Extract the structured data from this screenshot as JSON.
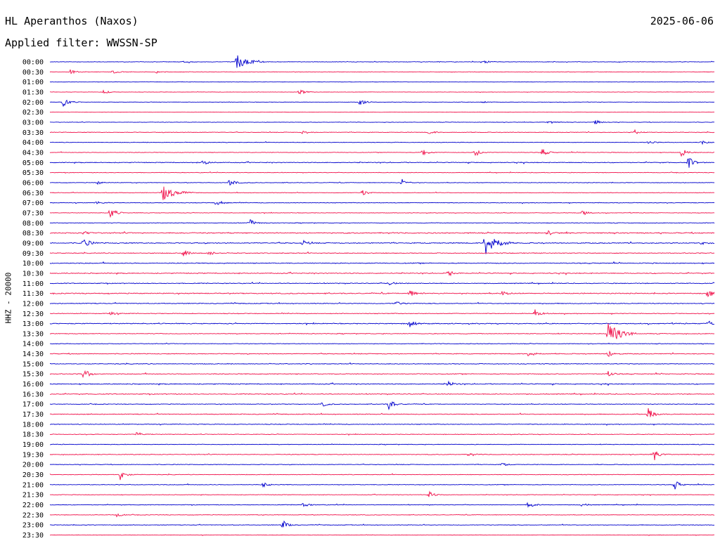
{
  "header": {
    "station": "HL Aperanthos (Naxos)",
    "date": "2025-06-06",
    "filter": "Applied filter: WWSSN-SP"
  },
  "colors": {
    "even_row": "#0000cc",
    "odd_row": "#f0104a",
    "text": "#000000"
  },
  "chart_data": {
    "type": "line",
    "title": "HL Aperanthos (Naxos)",
    "subtitle": "Applied filter: WWSSN-SP",
    "ylabel": "HHZ - 20000",
    "xlabel": "",
    "row_minutes": 30,
    "row_labels": [
      "00:00",
      "00:30",
      "01:00",
      "01:30",
      "02:00",
      "02:30",
      "03:00",
      "03:30",
      "04:00",
      "04:30",
      "05:00",
      "05:30",
      "06:00",
      "06:30",
      "07:00",
      "07:30",
      "08:00",
      "08:30",
      "09:00",
      "09:30",
      "10:00",
      "10:30",
      "11:00",
      "11:30",
      "12:00",
      "12:30",
      "13:00",
      "13:30",
      "14:00",
      "14:30",
      "15:00",
      "15:30",
      "16:00",
      "16:30",
      "17:00",
      "17:30",
      "18:00",
      "18:30",
      "19:00",
      "19:30",
      "20:00",
      "20:30",
      "21:00",
      "21:30",
      "22:00",
      "22:30",
      "23:00",
      "23:30"
    ],
    "noise_level": [
      0.3,
      0.25,
      0.15,
      0.2,
      0.2,
      0.15,
      0.25,
      0.35,
      0.3,
      0.3,
      0.45,
      0.3,
      0.3,
      0.3,
      0.35,
      0.3,
      0.35,
      0.6,
      0.55,
      0.45,
      0.5,
      0.5,
      0.45,
      0.55,
      0.45,
      0.4,
      0.5,
      0.4,
      0.35,
      0.45,
      0.4,
      0.45,
      0.5,
      0.45,
      0.35,
      0.45,
      0.4,
      0.35,
      0.35,
      0.4,
      0.35,
      0.35,
      0.35,
      0.3,
      0.35,
      0.3,
      0.35,
      0.25
    ],
    "events": [
      {
        "row": 0,
        "t": 0.28,
        "amp": 11
      },
      {
        "row": 0,
        "t": 0.65,
        "amp": 4
      },
      {
        "row": 0,
        "t": 0.2,
        "amp": 2
      },
      {
        "row": 1,
        "t": 0.03,
        "amp": 4
      },
      {
        "row": 1,
        "t": 0.095,
        "amp": 3
      },
      {
        "row": 1,
        "t": 0.16,
        "amp": 2
      },
      {
        "row": 3,
        "t": 0.08,
        "amp": 3
      },
      {
        "row": 3,
        "t": 0.375,
        "amp": 5
      },
      {
        "row": 4,
        "t": 0.02,
        "amp": 9
      },
      {
        "row": 4,
        "t": 0.465,
        "amp": 7
      },
      {
        "row": 4,
        "t": 0.65,
        "amp": 2
      },
      {
        "row": 6,
        "t": 0.75,
        "amp": 3
      },
      {
        "row": 6,
        "t": 0.82,
        "amp": 4
      },
      {
        "row": 7,
        "t": 0.38,
        "amp": 4
      },
      {
        "row": 7,
        "t": 0.57,
        "amp": 3
      },
      {
        "row": 7,
        "t": 0.88,
        "amp": 3
      },
      {
        "row": 8,
        "t": 0.9,
        "amp": 3
      },
      {
        "row": 8,
        "t": 0.98,
        "amp": 3
      },
      {
        "row": 9,
        "t": 0.56,
        "amp": 7
      },
      {
        "row": 9,
        "t": 0.64,
        "amp": 6
      },
      {
        "row": 9,
        "t": 0.74,
        "amp": 7
      },
      {
        "row": 9,
        "t": 0.95,
        "amp": 7
      },
      {
        "row": 10,
        "t": 0.23,
        "amp": 4
      },
      {
        "row": 10,
        "t": 0.96,
        "amp": 10
      },
      {
        "row": 12,
        "t": 0.07,
        "amp": 3
      },
      {
        "row": 12,
        "t": 0.27,
        "amp": 7
      },
      {
        "row": 12,
        "t": 0.53,
        "amp": 5
      },
      {
        "row": 13,
        "t": 0.17,
        "amp": 12
      },
      {
        "row": 13,
        "t": 0.47,
        "amp": 5
      },
      {
        "row": 14,
        "t": 0.07,
        "amp": 3
      },
      {
        "row": 14,
        "t": 0.25,
        "amp": 6
      },
      {
        "row": 15,
        "t": 0.09,
        "amp": 10
      },
      {
        "row": 15,
        "t": 0.8,
        "amp": 5
      },
      {
        "row": 16,
        "t": 0.3,
        "amp": 6
      },
      {
        "row": 17,
        "t": 0.05,
        "amp": 3
      },
      {
        "row": 17,
        "t": 0.75,
        "amp": 3
      },
      {
        "row": 18,
        "t": 0.05,
        "amp": 10
      },
      {
        "row": 18,
        "t": 0.38,
        "amp": 5
      },
      {
        "row": 18,
        "t": 0.655,
        "amp": 18
      },
      {
        "row": 18,
        "t": 0.98,
        "amp": 3
      },
      {
        "row": 19,
        "t": 0.2,
        "amp": 6
      },
      {
        "row": 19,
        "t": 0.24,
        "amp": 3
      },
      {
        "row": 21,
        "t": 0.6,
        "amp": 4
      },
      {
        "row": 22,
        "t": 0.51,
        "amp": 3
      },
      {
        "row": 23,
        "t": 0.54,
        "amp": 6
      },
      {
        "row": 23,
        "t": 0.68,
        "amp": 4
      },
      {
        "row": 23,
        "t": 0.99,
        "amp": 6
      },
      {
        "row": 24,
        "t": 0.52,
        "amp": 4
      },
      {
        "row": 25,
        "t": 0.09,
        "amp": 3
      },
      {
        "row": 25,
        "t": 0.73,
        "amp": 6
      },
      {
        "row": 26,
        "t": 0.54,
        "amp": 8
      },
      {
        "row": 26,
        "t": 0.99,
        "amp": 6
      },
      {
        "row": 27,
        "t": 0.84,
        "amp": 18
      },
      {
        "row": 29,
        "t": 0.72,
        "amp": 7
      },
      {
        "row": 29,
        "t": 0.84,
        "amp": 6
      },
      {
        "row": 31,
        "t": 0.05,
        "amp": 10
      },
      {
        "row": 31,
        "t": 0.84,
        "amp": 4
      },
      {
        "row": 32,
        "t": 0.6,
        "amp": 4
      },
      {
        "row": 34,
        "t": 0.41,
        "amp": 4
      },
      {
        "row": 34,
        "t": 0.51,
        "amp": 8
      },
      {
        "row": 35,
        "t": 0.9,
        "amp": 10
      },
      {
        "row": 37,
        "t": 0.13,
        "amp": 4
      },
      {
        "row": 39,
        "t": 0.63,
        "amp": 3
      },
      {
        "row": 39,
        "t": 0.91,
        "amp": 8
      },
      {
        "row": 40,
        "t": 0.68,
        "amp": 3
      },
      {
        "row": 41,
        "t": 0.105,
        "amp": 9
      },
      {
        "row": 42,
        "t": 0.32,
        "amp": 4
      },
      {
        "row": 42,
        "t": 0.94,
        "amp": 7
      },
      {
        "row": 43,
        "t": 0.57,
        "amp": 5
      },
      {
        "row": 44,
        "t": 0.38,
        "amp": 4
      },
      {
        "row": 44,
        "t": 0.72,
        "amp": 6
      },
      {
        "row": 44,
        "t": 0.8,
        "amp": 3
      },
      {
        "row": 45,
        "t": 0.1,
        "amp": 3
      },
      {
        "row": 46,
        "t": 0.35,
        "amp": 7
      }
    ]
  }
}
